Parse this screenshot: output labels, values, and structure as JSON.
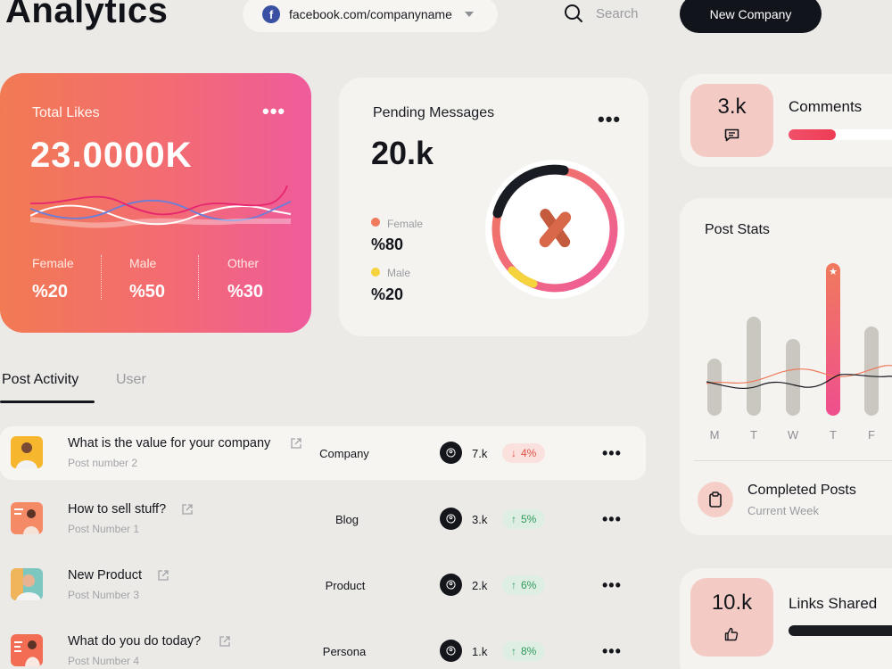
{
  "header": {
    "title": "Analytics",
    "url_selector": {
      "value": "facebook.com/companyname",
      "icon": "facebook-icon"
    },
    "search_placeholder": "Search",
    "new_company_label": "New Company"
  },
  "total_likes": {
    "title": "Total Likes",
    "value": "23.0000K",
    "stats": [
      {
        "label": "Female",
        "value": "%20"
      },
      {
        "label": "Male",
        "value": "%50"
      },
      {
        "label": "Other",
        "value": "%30"
      }
    ]
  },
  "pending_messages": {
    "title": "Pending Messages",
    "value": "20.k",
    "legend": [
      {
        "label": "Female",
        "value": "%80",
        "color": "#f07a5c"
      },
      {
        "label": "Male",
        "value": "%20",
        "color": "#f5d33d"
      }
    ]
  },
  "comments": {
    "value": "3.k",
    "label": "Comments",
    "progress": 0.38
  },
  "post_stats": {
    "title": "Post Stats",
    "days": [
      "M",
      "T",
      "W",
      "T",
      "F"
    ],
    "completed_label": "Completed Posts",
    "completed_sub": "Current Week"
  },
  "links_shared": {
    "value": "10.k",
    "label": "Links Shared"
  },
  "tabs": {
    "active": "Post Activity",
    "inactive": "User"
  },
  "posts": [
    {
      "title": "What is the value for your company",
      "sub": "Post number 2",
      "category": "Company",
      "count": "7.k",
      "change": "4%",
      "direction": "down"
    },
    {
      "title": "How to sell stuff?",
      "sub": "Post Number 1",
      "category": "Blog",
      "count": "3.k",
      "change": "5%",
      "direction": "up"
    },
    {
      "title": "New Product",
      "sub": "Post Number 3",
      "category": "Product",
      "count": "2.k",
      "change": "6%",
      "direction": "up"
    },
    {
      "title": "What do you do today?",
      "sub": "Post Number 4",
      "category": "Persona",
      "count": "1.k",
      "change": "8%",
      "direction": "up"
    }
  ],
  "colors": {
    "accent_dark": "#12141c",
    "accent_pink": "#ef5b9c",
    "accent_orange": "#f27a53",
    "up": "#2e9a5a",
    "down": "#e0534a"
  }
}
